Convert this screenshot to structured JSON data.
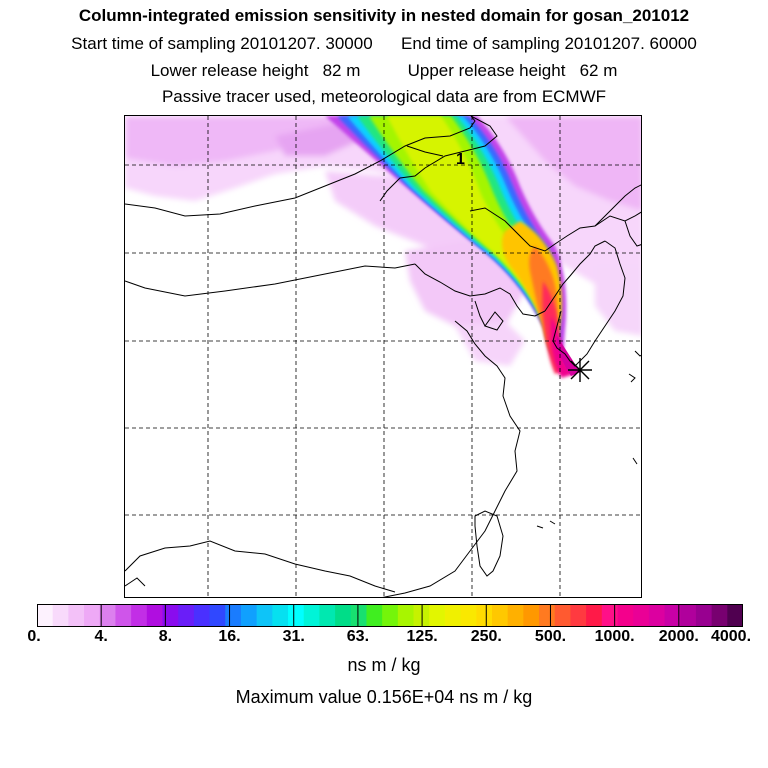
{
  "header": {
    "title": "Column-integrated emission sensitivity in nested domain for gosan_201012",
    "sampling_line": "Start time of sampling 20101207. 30000      End time of sampling 20101207. 60000",
    "release_line": "Lower release height   82 m          Upper release height   62 m",
    "tracer_line": "Passive tracer used, meteorological data are from ECMWF"
  },
  "map": {
    "station_label": "1",
    "release_site_marker": "asterisk-icon"
  },
  "colorbar": {
    "tick_labels": [
      "0.",
      "4.",
      "8.",
      "16.",
      "31.",
      "63.",
      "125.",
      "250.",
      "500.",
      "1000.",
      "2000.",
      "4000."
    ],
    "units": "ns m / kg",
    "colors": [
      "#fdf2fe",
      "#f8dafb",
      "#f3c1f8",
      "#eea9f6",
      "#dc80ee",
      "#cf55ea",
      "#c22ee6",
      "#b00ee0",
      "#8a0cee",
      "#6a1ef8",
      "#4a30ff",
      "#3048ff",
      "#1a7cfe",
      "#10a0fe",
      "#0ec4f8",
      "#06e0f0",
      "#00ffff",
      "#00f4d8",
      "#00e8b0",
      "#00dd88",
      "#18e070",
      "#40ee20",
      "#74f50a",
      "#a8f500",
      "#c6f200",
      "#e2f600",
      "#f0f000",
      "#fae800",
      "#ffdc00",
      "#ffc800",
      "#ffb000",
      "#ff9800",
      "#ff7a20",
      "#ff5a30",
      "#ff3a40",
      "#ff1a48",
      "#ff1088",
      "#f4008c",
      "#ea0096",
      "#dc00a0",
      "#c800a6",
      "#b0009c",
      "#980090",
      "#780070",
      "#500050"
    ]
  },
  "footer": {
    "max_value": "Maximum value  0.156E+04 ns m / kg"
  }
}
